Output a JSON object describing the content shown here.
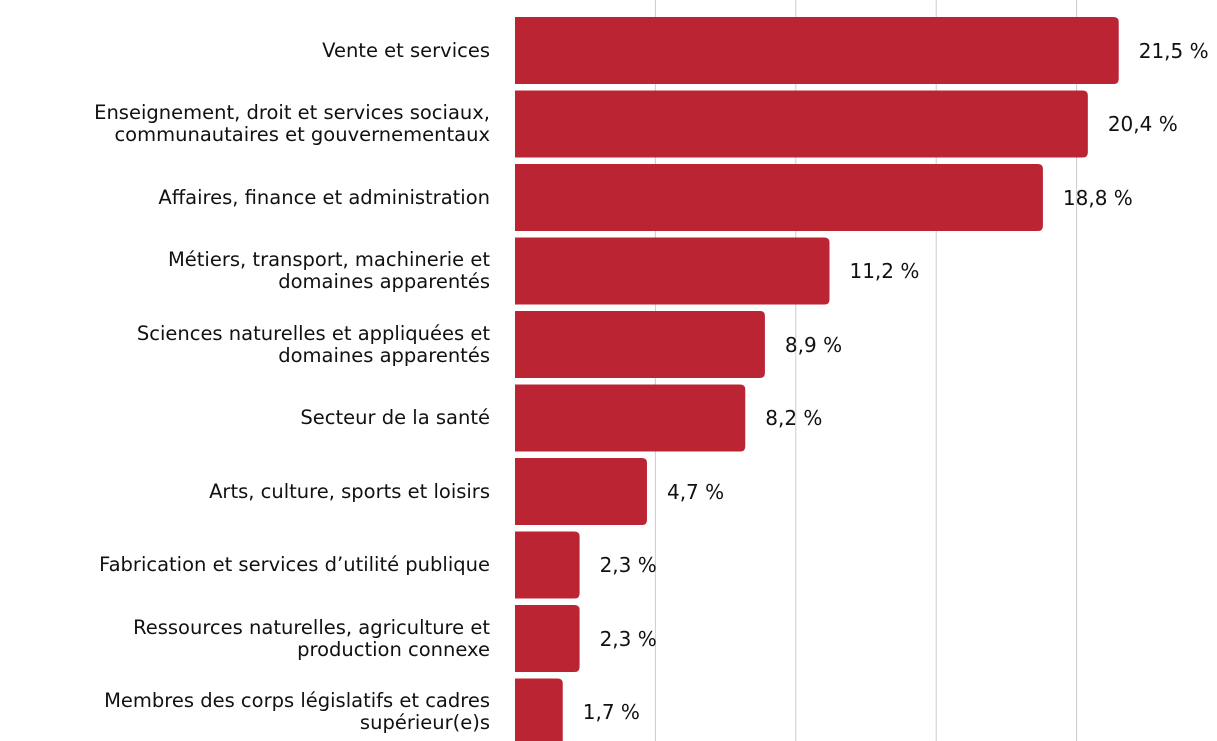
{
  "chart_data": {
    "type": "barh",
    "categories": [
      "Vente et services",
      "Enseignement, droit et services sociaux,\ncommunautaires et gouvernementaux",
      "Affaires, finance et administration",
      "Métiers, transport, machinerie et\ndomaines apparentés",
      "Sciences naturelles et appliquées et\ndomaines apparentés",
      "Secteur de la santé",
      "Arts, culture, sports et loisirs",
      "Fabrication et services d’utilité publique",
      "Ressources naturelles, agriculture et\nproduction connexe",
      "Membres des corps législatifs et cadres\nsupérieur(e)s"
    ],
    "values": [
      21.5,
      20.4,
      18.8,
      11.2,
      8.9,
      8.2,
      4.7,
      2.3,
      2.3,
      1.7
    ],
    "value_labels": [
      "21,5 %",
      "20,4 %",
      "18,8 %",
      "11,2 %",
      "8,9 %",
      "8,2 %",
      "4,7 %",
      "2,3 %",
      "2,3 %",
      "1,7 %"
    ],
    "color": "#bb2433",
    "xlim": [
      0,
      25
    ],
    "xticks": [
      5,
      10,
      15,
      20
    ],
    "grid": true
  }
}
